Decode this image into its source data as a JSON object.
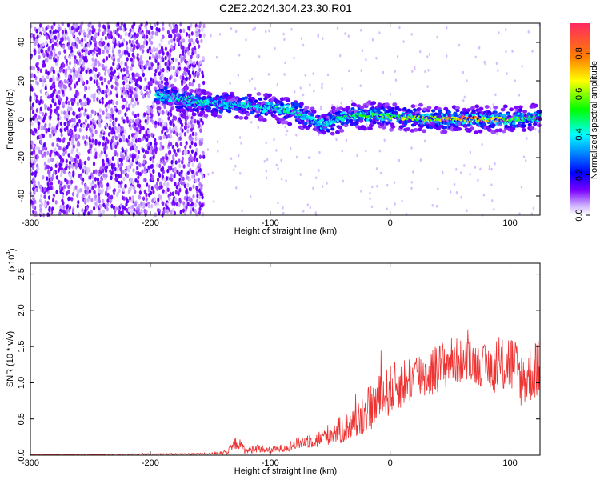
{
  "figure_title": "C2E2.2024.304.23.30.R01",
  "chart_data": [
    {
      "type": "heatmap",
      "title": "C2E2.2024.304.23.30.R01",
      "xlabel": "Height of straight line (km)",
      "ylabel": "Frequency (Hz)",
      "xlim": [
        -300,
        125
      ],
      "ylim": [
        -50,
        50
      ],
      "xticks": [
        -300,
        -200,
        -100,
        0,
        100
      ],
      "yticks": [
        -40,
        -20,
        0,
        20,
        40
      ],
      "colorbar": {
        "label": "Normalized spectral amplitude",
        "range": [
          0,
          0.95
        ],
        "ticks": [
          0.0,
          0.2,
          0.4,
          0.6,
          0.8
        ],
        "tick_labels": [
          "0.0",
          "0.2",
          "0.4",
          "0.6",
          "0.8"
        ]
      },
      "noise_region_x": [
        -300,
        -155
      ],
      "ridge": {
        "x": [
          -195,
          -180,
          -160,
          -140,
          -120,
          -100,
          -80,
          -65,
          -55,
          -45,
          -30,
          -10,
          10,
          40,
          70,
          100,
          125
        ],
        "frequency": [
          13,
          11,
          9,
          8,
          7,
          6,
          4,
          0,
          -3,
          0,
          2,
          2,
          1,
          0,
          0,
          0,
          1
        ],
        "amplitude": [
          0.4,
          0.45,
          0.45,
          0.4,
          0.45,
          0.45,
          0.45,
          0.4,
          0.4,
          0.45,
          0.5,
          0.55,
          0.6,
          0.7,
          0.8,
          0.6,
          0.5
        ]
      }
    },
    {
      "type": "line",
      "xlabel": "Height of straight line (km)",
      "ylabel": "SNR (10 * v/v)",
      "y_scale_label": "(x10",
      "y_scale_exp": "4",
      "xlim": [
        -300,
        125
      ],
      "ylim": [
        0,
        2.65
      ],
      "xticks": [
        -300,
        -200,
        -100,
        0,
        100
      ],
      "yticks": [
        0.0,
        0.5,
        1.0,
        1.5,
        2.0,
        2.5
      ],
      "ytick_labels": [
        "0.0",
        "0.5",
        "1.0",
        "1.5",
        "2.0",
        "2.5"
      ],
      "color": "#ee3333",
      "series": [
        {
          "x": [
            -300,
            -250,
            -200,
            -150,
            -135,
            -128,
            -120,
            -110,
            -100,
            -90,
            -80,
            -70,
            -60,
            -50,
            -40,
            -30,
            -20,
            -10,
            0,
            10,
            20,
            30,
            40,
            50,
            60,
            70,
            80,
            90,
            100,
            110,
            125
          ],
          "values": [
            0.01,
            0.01,
            0.015,
            0.02,
            0.05,
            0.18,
            0.06,
            0.1,
            0.06,
            0.1,
            0.14,
            0.2,
            0.22,
            0.3,
            0.35,
            0.45,
            0.6,
            0.75,
            0.9,
            1.0,
            1.08,
            1.12,
            1.2,
            1.3,
            1.3,
            1.28,
            1.22,
            1.18,
            1.3,
            1.05,
            1.2
          ],
          "spread": [
            0.005,
            0.005,
            0.008,
            0.012,
            0.04,
            0.1,
            0.05,
            0.06,
            0.05,
            0.06,
            0.08,
            0.1,
            0.12,
            0.15,
            0.2,
            0.25,
            0.3,
            0.35,
            0.35,
            0.35,
            0.35,
            0.35,
            0.35,
            0.35,
            0.3,
            0.3,
            0.3,
            0.35,
            0.45,
            0.4,
            0.4
          ]
        }
      ]
    }
  ]
}
